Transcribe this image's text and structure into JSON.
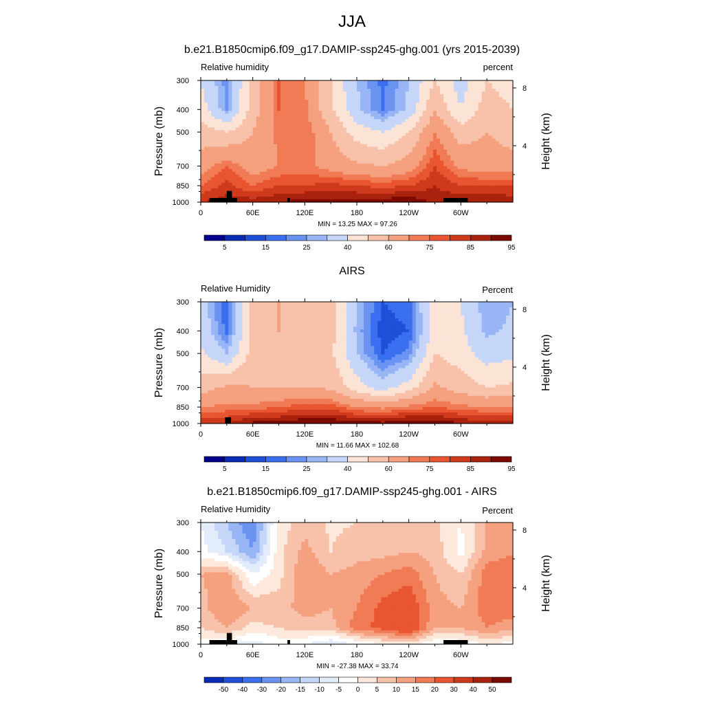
{
  "main_title": "JJA",
  "panels": [
    {
      "title": "b.e21.B1850cmip6.f09_g17.DAMIP-ssp245-ghg.001 (yrs 2015-2039)",
      "var_label": "Relative humidity",
      "unit_label": "percent",
      "stats": "MIN =  13.25  MAX =  97.26",
      "colorbar_labels": [
        "5",
        "15",
        "25",
        "40",
        "60",
        "75",
        "85",
        "95"
      ]
    },
    {
      "title": "AIRS",
      "var_label": "Relative Humidity",
      "unit_label": "Percent",
      "stats": "MIN =  11.66  MAX = 102.68",
      "colorbar_labels": [
        "5",
        "15",
        "25",
        "40",
        "60",
        "75",
        "85",
        "95"
      ]
    },
    {
      "title": "b.e21.B1850cmip6.f09_g17.DAMIP-ssp245-ghg.001 - AIRS",
      "var_label": "Relative Humidity",
      "unit_label": "Percent",
      "stats": "MIN = -27.38  MAX =  33.74",
      "colorbar_labels": [
        "-50",
        "-40",
        "-30",
        "-20",
        "-15",
        "-10",
        "-5",
        "0",
        "5",
        "10",
        "15",
        "20",
        "30",
        "40",
        "50"
      ]
    }
  ],
  "axes": {
    "ylabel": "Pressure (mb)",
    "ylabel_right": "Height (km)",
    "yticks": [
      "300",
      "400",
      "500",
      "700",
      "850",
      "1000"
    ],
    "xticks": [
      "0",
      "60E",
      "120E",
      "180",
      "120W",
      "60W"
    ],
    "height_ticks": [
      "8",
      "4"
    ]
  },
  "palettes": {
    "full": [
      "#00008b",
      "#0a2bb5",
      "#1f4fd9",
      "#3a6ff0",
      "#6a93f2",
      "#98b6f5",
      "#c5d6f8",
      "#fbe3d6",
      "#f8c2aa",
      "#f5a07f",
      "#f07b55",
      "#e85530",
      "#cf3a1c",
      "#a8220e",
      "#7d0a00"
    ],
    "diff": [
      "#0a2bb5",
      "#1f4fd9",
      "#3a6ff0",
      "#6a93f2",
      "#98b6f5",
      "#c5d6f8",
      "#e3ecfb",
      "#ffffff",
      "#fde9dc",
      "#f8c2aa",
      "#f5a07f",
      "#f07b55",
      "#e85530",
      "#cf3a1c",
      "#a8220e",
      "#7d0a00"
    ]
  },
  "chart_data": [
    {
      "type": "heatmap",
      "title": "b.e21.B1850cmip6.f09_g17.DAMIP-ssp245-ghg.001 (yrs 2015-2039)",
      "xlabel": "",
      "ylabel": "Pressure (mb)",
      "x": [
        0,
        30,
        60,
        90,
        120,
        150,
        180,
        210,
        240,
        270,
        300,
        330,
        360
      ],
      "y": [
        300,
        400,
        500,
        700,
        850,
        1000
      ],
      "values": [
        [
          40,
          22,
          55,
          75,
          70,
          50,
          30,
          18,
          30,
          50,
          35,
          50,
          45
        ],
        [
          45,
          25,
          55,
          75,
          72,
          52,
          32,
          20,
          32,
          60,
          40,
          55,
          50
        ],
        [
          55,
          50,
          60,
          72,
          75,
          60,
          45,
          40,
          50,
          70,
          55,
          60,
          55
        ],
        [
          65,
          75,
          65,
          70,
          72,
          66,
          62,
          60,
          65,
          80,
          68,
          65,
          65
        ],
        [
          75,
          82,
          75,
          80,
          80,
          82,
          80,
          78,
          80,
          85,
          80,
          80,
          80
        ],
        [
          85,
          88,
          88,
          90,
          92,
          92,
          92,
          93,
          95,
          88,
          90,
          90,
          88
        ]
      ],
      "zlim": [
        13.25,
        97.26
      ]
    },
    {
      "type": "heatmap",
      "title": "AIRS",
      "xlabel": "",
      "ylabel": "Pressure (mb)",
      "x": [
        0,
        30,
        60,
        90,
        120,
        150,
        180,
        210,
        240,
        270,
        300,
        330,
        360
      ],
      "y": [
        300,
        400,
        500,
        700,
        850,
        1000
      ],
      "values": [
        [
          35,
          15,
          55,
          60,
          58,
          55,
          30,
          15,
          18,
          45,
          40,
          25,
          30
        ],
        [
          38,
          18,
          55,
          60,
          58,
          55,
          28,
          12,
          15,
          45,
          42,
          28,
          32
        ],
        [
          42,
          30,
          55,
          58,
          55,
          52,
          30,
          15,
          22,
          50,
          45,
          35,
          38
        ],
        [
          55,
          62,
          60,
          60,
          60,
          58,
          45,
          35,
          45,
          62,
          55,
          50,
          52
        ],
        [
          70,
          72,
          72,
          75,
          78,
          78,
          70,
          68,
          72,
          75,
          72,
          70,
          70
        ],
        [
          85,
          85,
          92,
          92,
          95,
          95,
          92,
          92,
          95,
          95,
          90,
          88,
          88
        ]
      ],
      "zlim": [
        11.66,
        102.68
      ]
    },
    {
      "type": "heatmap",
      "title": "b.e21.B1850cmip6.f09_g17.DAMIP-ssp245-ghg.001 - AIRS",
      "xlabel": "",
      "ylabel": "Pressure (mb)",
      "x": [
        0,
        30,
        60,
        90,
        120,
        150,
        180,
        210,
        240,
        270,
        300,
        330,
        360
      ],
      "y": [
        300,
        400,
        500,
        700,
        850,
        1000
      ],
      "values": [
        [
          -5,
          -15,
          -25,
          2,
          8,
          4,
          5,
          6,
          8,
          6,
          0,
          10,
          12
        ],
        [
          -3,
          -10,
          -20,
          3,
          12,
          5,
          8,
          8,
          10,
          8,
          -2,
          12,
          14
        ],
        [
          10,
          12,
          -5,
          3,
          15,
          10,
          12,
          15,
          18,
          10,
          5,
          18,
          20
        ],
        [
          8,
          15,
          10,
          8,
          12,
          10,
          15,
          22,
          25,
          12,
          10,
          18,
          18
        ],
        [
          5,
          10,
          3,
          5,
          8,
          8,
          18,
          22,
          28,
          10,
          10,
          15,
          12
        ],
        [
          -2,
          -5,
          -8,
          -3,
          -5,
          -10,
          -5,
          0,
          2,
          -5,
          -3,
          0,
          -2
        ]
      ],
      "zlim": [
        -27.38,
        33.74
      ]
    }
  ]
}
